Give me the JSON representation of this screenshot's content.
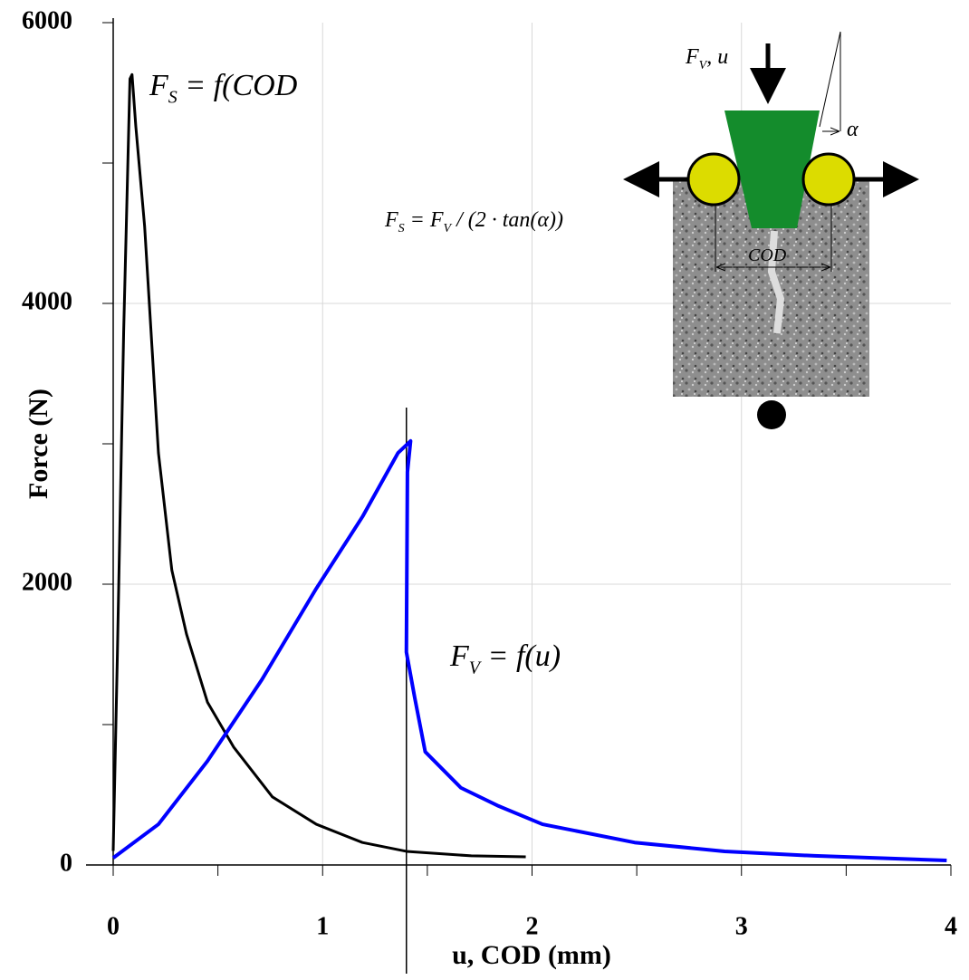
{
  "chart_data": {
    "type": "line",
    "xlabel": "u, COD (mm)",
    "ylabel": "Force (N)",
    "xlim": [
      0,
      4
    ],
    "ylim": [
      0,
      6000
    ],
    "xticks": [
      0,
      1,
      2,
      3,
      4
    ],
    "yticks": [
      0,
      2000,
      4000,
      6000
    ],
    "xminor_ticks": [
      0.5,
      1.5,
      2.5,
      3.5
    ],
    "yminor_ticks": [
      1000,
      3000,
      5000
    ],
    "grid": true,
    "vline_x": 1.4,
    "series": [
      {
        "color": "#000000",
        "x": [
          0,
          0.02,
          0.05,
          0.08,
          0.09,
          0.108,
          0.15,
          0.216,
          0.28,
          0.35,
          0.45,
          0.575,
          0.76,
          0.97,
          1.19,
          1.4,
          1.71,
          1.97
        ],
        "values": [
          100,
          1500,
          3800,
          5600,
          5630,
          5260,
          4550,
          2935,
          2100,
          1645,
          1160,
          840,
          485,
          290,
          160,
          97,
          65,
          58
        ]
      },
      {
        "color": "#0000ff",
        "x": [
          0,
          0.216,
          0.45,
          0.71,
          0.97,
          1.19,
          1.36,
          1.42,
          1.405,
          1.4,
          1.44,
          1.49,
          1.66,
          1.84,
          2.05,
          2.49,
          2.92,
          3.35,
          3.98
        ],
        "values": [
          50,
          290,
          740,
          1320,
          1970,
          2480,
          2935,
          3020,
          2800,
          1516,
          1190,
          806,
          550,
          420,
          290,
          160,
          97,
          65,
          32
        ]
      }
    ],
    "annotations": [
      {
        "parts": [
          {
            "text": "F"
          },
          {
            "text": "S",
            "sub": true
          },
          {
            "text": " = f(COD"
          }
        ]
      },
      {
        "parts": [
          {
            "text": "F"
          },
          {
            "text": "V",
            "sub": true
          },
          {
            "text": " = f(u)"
          }
        ]
      },
      {
        "parts": [
          {
            "text": "F"
          },
          {
            "text": "V",
            "sub": true
          },
          {
            "text": ", u"
          }
        ]
      },
      {
        "parts": [
          {
            "text": "α"
          }
        ]
      },
      {
        "parts": [
          {
            "text": "F"
          },
          {
            "text": "S",
            "sub": true
          },
          {
            "text": " = F"
          },
          {
            "text": "V",
            "sub": true
          },
          {
            "text": " / (2 · tan(α))"
          }
        ]
      },
      {
        "parts": [
          {
            "text": "COD"
          }
        ]
      }
    ]
  }
}
